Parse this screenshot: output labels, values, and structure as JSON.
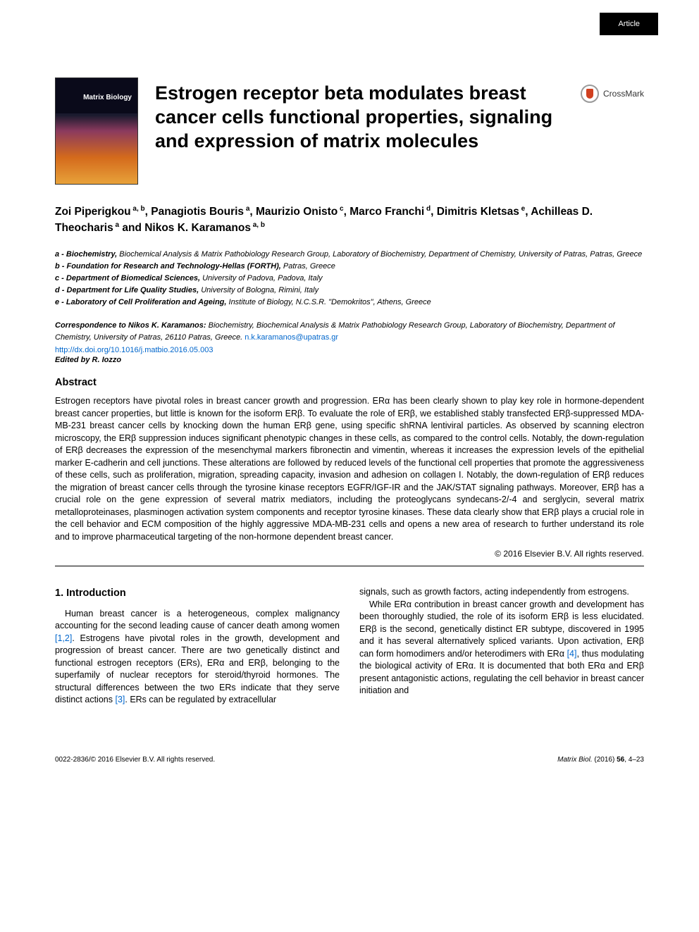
{
  "badge": {
    "label": "Article"
  },
  "journal_cover": {
    "journal_name": "Matrix Biology"
  },
  "crossmark": {
    "label": "CrossMark"
  },
  "title": "Estrogen receptor beta modulates breast cancer cells functional properties, signaling and expression of matrix molecules",
  "authors_html": "Zoi Piperigkou<sup> a, b</sup>, Panagiotis Bouris<sup> a</sup>, Maurizio Onisto<sup> c</sup>, Marco Franchi<sup> d</sup>, Dimitris Kletsas<sup> e</sup>, Achilleas D. Theocharis<sup> a</sup> and Nikos K. Karamanos<sup> a, b</sup>",
  "affiliations": [
    {
      "label": "a - Biochemistry,",
      "text": " Biochemical Analysis & Matrix Pathobiology Research Group, Laboratory of Biochemistry, Department of Chemistry, University of Patras, Patras, Greece"
    },
    {
      "label": "b - Foundation for Research and Technology-Hellas (FORTH),",
      "text": " Patras, Greece"
    },
    {
      "label": "c - Department of Biomedical Sciences,",
      "text": " University of Padova, Padova, Italy"
    },
    {
      "label": "d - Department for Life Quality Studies,",
      "text": " University of Bologna, Rimini, Italy"
    },
    {
      "label": "e - Laboratory of Cell Proliferation and Ageing,",
      "text": " Institute of Biology, N.C.S.R. \"Demokritos\", Athens, Greece"
    }
  ],
  "correspondence": {
    "label": "Correspondence to Nikos K. Karamanos:",
    "text": "  Biochemistry, Biochemical Analysis & Matrix Pathobiology Research Group, Laboratory of Biochemistry, Department of Chemistry, University of Patras, 26110 Patras, Greece. ",
    "email": "n.k.karamanos@upatras.gr"
  },
  "doi": {
    "url": "http://dx.doi.org/10.1016/j.matbio.2016.05.003"
  },
  "edited_by": "Edited by R. Iozzo",
  "abstract": {
    "heading": "Abstract",
    "text": "Estrogen receptors have pivotal roles in breast cancer growth and progression. ERα has been clearly shown to play key role in hormone-dependent breast cancer properties, but little is known for the isoform ERβ. To evaluate the role of ERβ, we established stably transfected ERβ-suppressed MDA-MB-231 breast cancer cells by knocking down the human ERβ gene, using specific shRNA lentiviral particles. As observed by scanning electron microscopy, the ERβ suppression induces significant phenotypic changes in these cells, as compared to the control cells. Notably, the down-regulation of ERβ decreases the expression of the mesenchymal markers fibronectin and vimentin, whereas it increases the expression levels of the epithelial marker E-cadherin and cell junctions. These alterations are followed by reduced levels of the functional cell properties that promote the aggressiveness of these cells, such as proliferation, migration, spreading capacity, invasion and adhesion on collagen I. Notably, the down-regulation of ERβ reduces the migration of breast cancer cells through the tyrosine kinase receptors EGFR/IGF-IR and the JAK/STAT signaling pathways. Moreover, ERβ has a crucial role on the gene expression of several matrix mediators, including the proteoglycans syndecans-2/-4 and serglycin, several matrix metalloproteinases, plasminogen activation system components and receptor tyrosine kinases. These data clearly show that ERβ plays a crucial role in the cell behavior and ECM composition of the highly aggressive MDA-MB-231 cells and opens a new area of research to further understand its role and to improve pharmaceutical targeting of the non-hormone dependent breast cancer.",
    "copyright": "© 2016 Elsevier B.V. All rights reserved."
  },
  "introduction": {
    "heading": "1. Introduction",
    "col1_p1_before": "Human breast cancer is a heterogeneous, complex malignancy accounting for the second leading cause of cancer death among women ",
    "ref12": "[1,2]",
    "col1_p1_after": ". Estrogens have pivotal roles in the growth, development and progression of breast cancer. There are two genetically distinct and functional estrogen receptors (ERs), ERα and ERβ, belonging to the superfamily of nuclear receptors for steroid/thyroid hormones. The structural differences between the two ERs indicate that they serve distinct actions ",
    "ref3": "[3]",
    "col1_p1_end": ". ERs can be regulated by extracellular",
    "col2_p1": "signals, such as growth factors, acting independently from estrogens.",
    "col2_p2_before": "While ERα contribution in breast cancer growth and development has been thoroughly studied, the role of its isoform ERβ is less elucidated. ERβ is the second, genetically distinct ER subtype, discovered in 1995 and it has several alternatively spliced variants. Upon activation, ERβ can form homodimers and/or heterodimers with ERα ",
    "ref4": "[4]",
    "col2_p2_after": ", thus modulating the biological activity of ERα. It is documented that both ERα and ERβ present antagonistic actions, regulating the cell behavior in breast cancer initiation and"
  },
  "footer": {
    "left": "0022-2836/© 2016 Elsevier B.V. All rights reserved.",
    "journal": "Matrix Biol.",
    "year_vol": " (2016) ",
    "vol": "56",
    "pages": ", 4–23"
  },
  "colors": {
    "link": "#0066cc",
    "badge_bg": "#000000",
    "badge_fg": "#ffffff",
    "text": "#000000"
  }
}
